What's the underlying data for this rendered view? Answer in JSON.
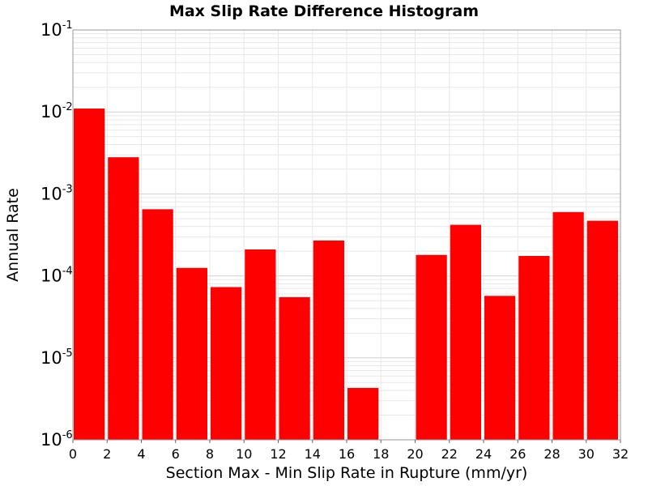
{
  "chart_data": {
    "type": "bar",
    "title": "Max Slip Rate Difference Histogram",
    "xlabel": "Section Max - Min Slip Rate in Rupture (mm/yr)",
    "ylabel": "Annual Rate",
    "y_scale": "log",
    "xlim": [
      0,
      32
    ],
    "ylim": [
      1e-06,
      0.1
    ],
    "grid": true,
    "bar_color": "#ff0000",
    "x_ticks": [
      "0",
      "2",
      "4",
      "6",
      "8",
      "10",
      "12",
      "14",
      "16",
      "18",
      "20",
      "22",
      "24",
      "26",
      "28",
      "30",
      "32"
    ],
    "y_ticks": [
      {
        "base": "10",
        "exp": "-1"
      },
      {
        "base": "10",
        "exp": "-2"
      },
      {
        "base": "10",
        "exp": "-3"
      },
      {
        "base": "10",
        "exp": "-4"
      },
      {
        "base": "10",
        "exp": "-5"
      },
      {
        "base": "10",
        "exp": "-6"
      }
    ],
    "bins": [
      {
        "x0": 0,
        "x1": 2,
        "value": 0.011
      },
      {
        "x0": 2,
        "x1": 4,
        "value": 0.0028
      },
      {
        "x0": 4,
        "x1": 6,
        "value": 0.00065
      },
      {
        "x0": 6,
        "x1": 8,
        "value": 0.000125
      },
      {
        "x0": 8,
        "x1": 10,
        "value": 7.3e-05
      },
      {
        "x0": 10,
        "x1": 12,
        "value": 0.00021
      },
      {
        "x0": 12,
        "x1": 14,
        "value": 5.5e-05
      },
      {
        "x0": 14,
        "x1": 16,
        "value": 0.00027
      },
      {
        "x0": 16,
        "x1": 18,
        "value": 4.3e-06
      },
      {
        "x0": 18,
        "x1": 20,
        "value": null
      },
      {
        "x0": 20,
        "x1": 22,
        "value": 0.00018
      },
      {
        "x0": 22,
        "x1": 24,
        "value": 0.00042
      },
      {
        "x0": 24,
        "x1": 26,
        "value": 5.7e-05
      },
      {
        "x0": 26,
        "x1": 28,
        "value": 0.000175
      },
      {
        "x0": 28,
        "x1": 30,
        "value": 0.0006
      },
      {
        "x0": 30,
        "x1": 32,
        "value": 0.00047
      }
    ]
  }
}
